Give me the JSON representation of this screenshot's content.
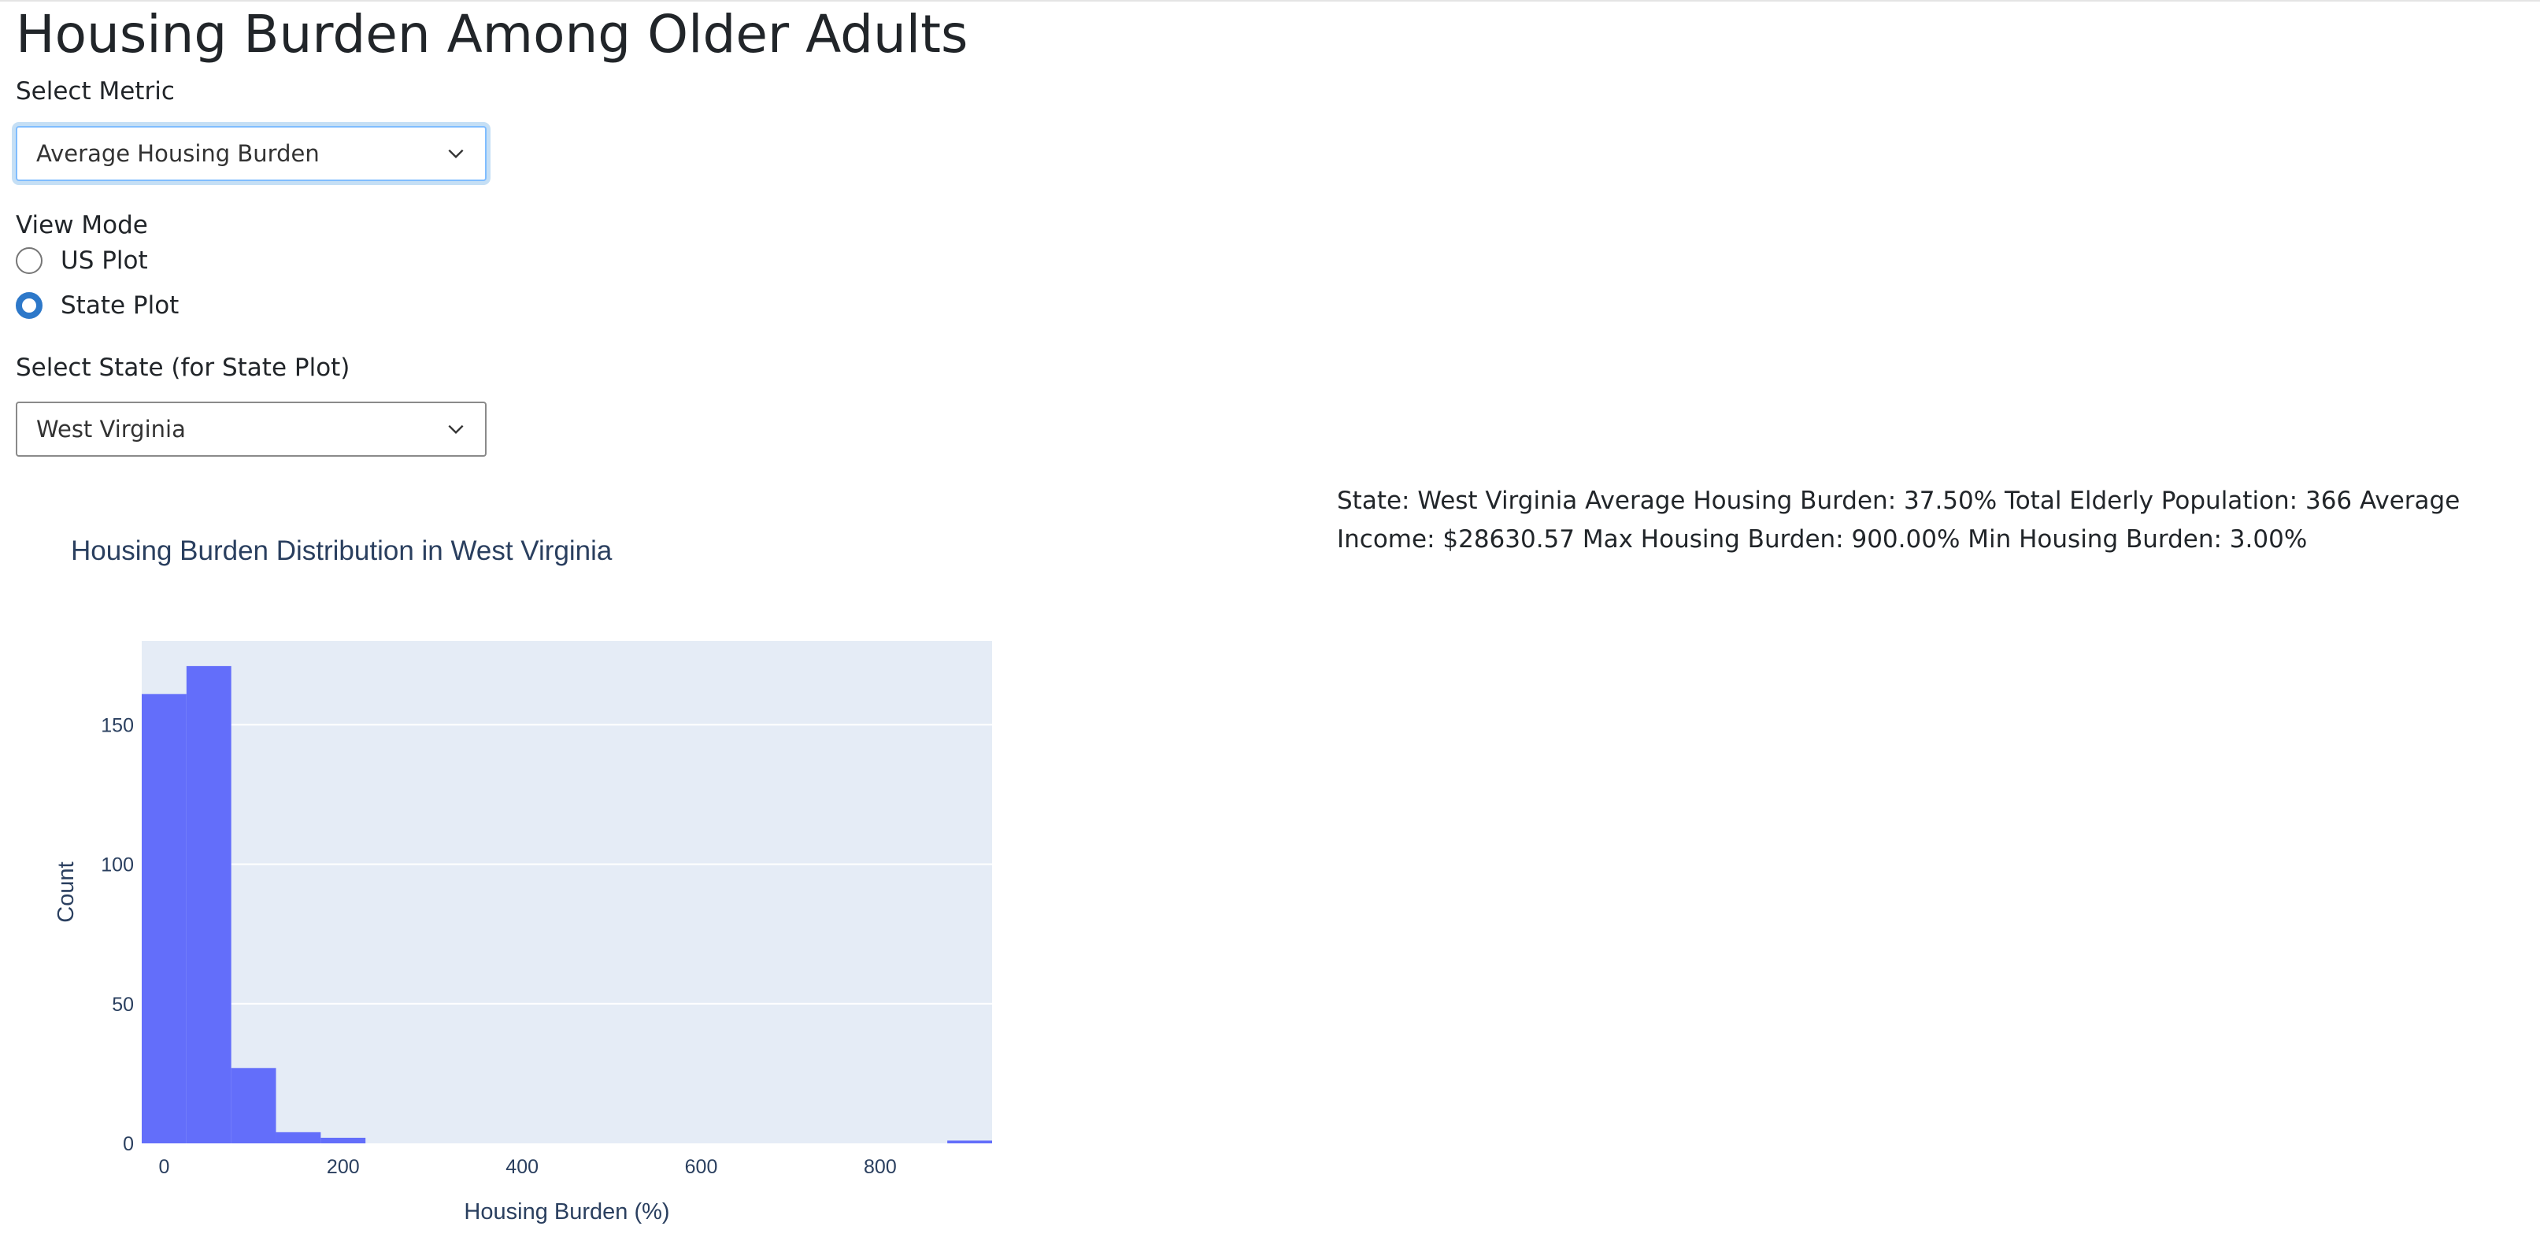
{
  "header": {
    "title": "Housing Burden Among Older Adults"
  },
  "metric": {
    "label": "Select Metric",
    "selected": "Average Housing Burden"
  },
  "view_mode": {
    "label": "View Mode",
    "options": [
      {
        "label": "US Plot",
        "checked": false
      },
      {
        "label": "State Plot",
        "checked": true
      }
    ]
  },
  "state": {
    "label": "Select State (for State Plot)",
    "selected": "West Virginia"
  },
  "summary": {
    "text": "State: West Virginia Average Housing Burden: 37.50% Total Elderly Population: 366 Average Income: $28630.57 Max Housing Burden: 900.00% Min Housing Burden: 3.00%"
  },
  "colors": {
    "bar": "#636efa",
    "plot_bg": "#e5ecf6",
    "text": "#2a3f5f",
    "accent": "#2d78c9"
  },
  "chart_data": {
    "type": "bar",
    "title": "Housing Burden Distribution in West Virginia",
    "xlabel": "Housing Burden (%)",
    "ylabel": "Count",
    "bin_edges": [
      -25,
      25,
      75,
      125,
      175,
      225,
      275,
      325,
      375,
      425,
      475,
      525,
      575,
      625,
      675,
      725,
      775,
      825,
      875,
      925
    ],
    "counts": [
      161,
      171,
      27,
      4,
      2,
      0,
      0,
      0,
      0,
      0,
      0,
      0,
      0,
      0,
      0,
      0,
      0,
      0,
      1
    ],
    "xlim": [
      -25,
      925
    ],
    "ylim": [
      0,
      180
    ],
    "xticks": [
      "0",
      "200",
      "400",
      "600",
      "800"
    ],
    "yticks": [
      "0",
      "50",
      "100",
      "150"
    ],
    "grid": true,
    "legend": "none"
  }
}
